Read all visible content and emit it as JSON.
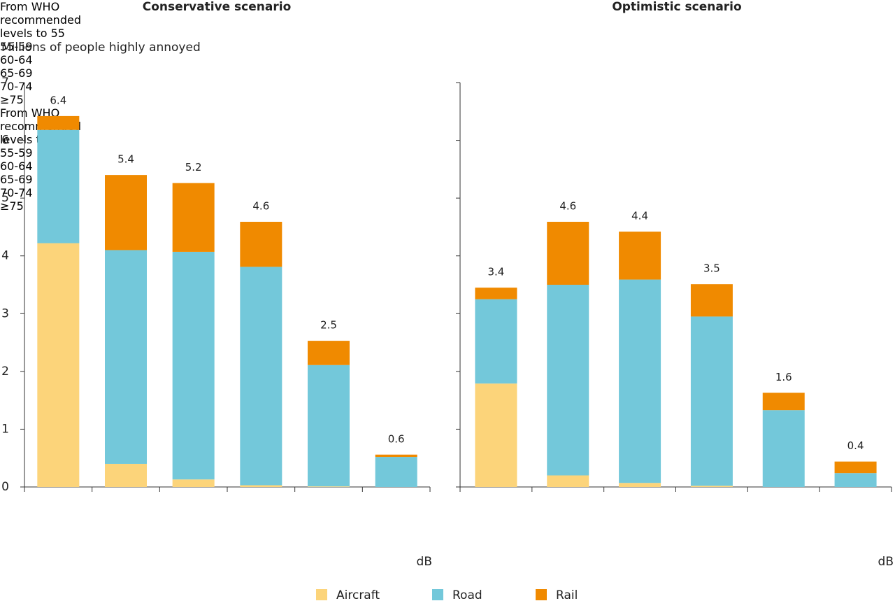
{
  "chart_data": [
    {
      "type": "stacked_bar",
      "title": "Conservative scenario",
      "y_label": "Millions of people highly annoyed",
      "x_label": "dB",
      "categories": [
        "From WHO recommended levels to 55",
        "55-59",
        "60-64",
        "65-69",
        "70-74",
        "≥75"
      ],
      "series": [
        {
          "name": "Aircraft",
          "color": "#fcd47a",
          "values": [
            4.22,
            0.4,
            0.13,
            0.03,
            0.01,
            0
          ]
        },
        {
          "name": "Road",
          "color": "#73c8da",
          "values": [
            1.96,
            3.7,
            3.94,
            3.78,
            2.1,
            0.52
          ]
        },
        {
          "name": "Rail",
          "color": "#f08a00",
          "values": [
            0.24,
            1.3,
            1.19,
            0.78,
            0.42,
            0.04
          ]
        }
      ],
      "totals": [
        6.4,
        5.4,
        5.2,
        4.6,
        2.5,
        0.6
      ],
      "ylim": [
        0,
        7
      ],
      "yticks": [
        0,
        1,
        2,
        3,
        4,
        5,
        6,
        7
      ],
      "tick_labels": true
    },
    {
      "type": "stacked_bar",
      "title": "Optimistic scenario",
      "x_label": "dB",
      "categories": [
        "From WHO recommended levels to 55",
        "55-59",
        "60-64",
        "65-69",
        "70-74",
        "≥75"
      ],
      "series": [
        {
          "name": "Aircraft",
          "color": "#fcd47a",
          "values": [
            1.79,
            0.2,
            0.07,
            0.02,
            0,
            0
          ]
        },
        {
          "name": "Road",
          "color": "#73c8da",
          "values": [
            1.46,
            3.3,
            3.52,
            2.93,
            1.33,
            0.24
          ]
        },
        {
          "name": "Rail",
          "color": "#f08a00",
          "values": [
            0.2,
            1.09,
            0.83,
            0.56,
            0.3,
            0.2
          ]
        }
      ],
      "totals": [
        3.4,
        4.6,
        4.4,
        3.5,
        1.6,
        0.4
      ],
      "ylim": [
        0,
        7
      ],
      "yticks": [
        0,
        1,
        2,
        3,
        4,
        5,
        6,
        7
      ],
      "tick_labels": false
    }
  ]
}
